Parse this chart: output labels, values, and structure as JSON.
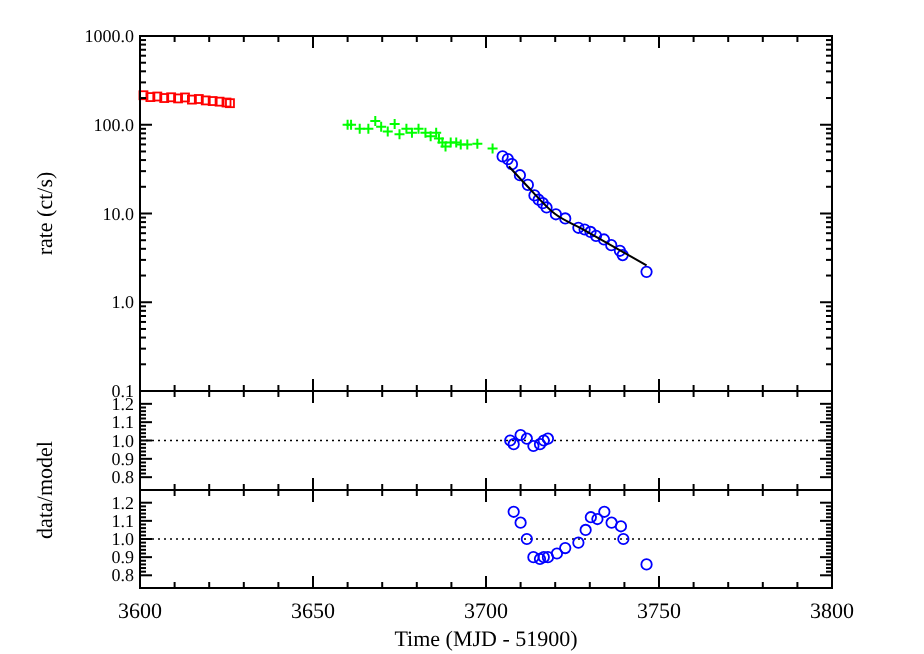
{
  "chart_data": [
    {
      "type": "scatter",
      "ylabel": "rate (ct/s)",
      "log": "y",
      "xlim": [
        3600,
        3800
      ],
      "xticks": [
        3600,
        3650,
        3700,
        3750,
        3800
      ],
      "ylim": [
        0.1,
        1000
      ],
      "yticks": [
        {
          "value": 0.1,
          "label": "0.1"
        },
        {
          "value": 1,
          "label": "1.0"
        },
        {
          "value": 10,
          "label": "10.0"
        },
        {
          "value": 100,
          "label": "100.0"
        },
        {
          "value": 1000,
          "label": "1000.0"
        }
      ],
      "tick_labels": "y",
      "series": [
        {
          "type": "scatter",
          "marker": "square",
          "color": "#ff0000",
          "x": [
            3601,
            3603,
            3605,
            3607,
            3609,
            3611,
            3613,
            3615,
            3617,
            3619,
            3621,
            3623,
            3625,
            3626
          ],
          "values": [
            215,
            205,
            208,
            200,
            204,
            198,
            203,
            192,
            195,
            188,
            185,
            182,
            178,
            175
          ]
        },
        {
          "type": "scatter",
          "marker": "cross",
          "color": "#00ff00",
          "x": [
            3660,
            3661,
            3663.5,
            3666,
            3668,
            3669.7,
            3671.6,
            3673.6,
            3675,
            3677,
            3678.6,
            3680.5,
            3682.5,
            3684,
            3685.6,
            3686.4,
            3687.4,
            3688.3,
            3689.8,
            3691.4,
            3692.7,
            3694.6,
            3697.5,
            3701.9
          ],
          "values": [
            100,
            100,
            90,
            90,
            110,
            95,
            84,
            102,
            78,
            90,
            81,
            90,
            81,
            74,
            81,
            70,
            63,
            57,
            63,
            63,
            60,
            60,
            61,
            54
          ]
        },
        {
          "type": "scatter",
          "marker": "circle",
          "color": "#0000ff",
          "x": [
            3704.8,
            3706.3,
            3707.5,
            3709.8,
            3712.1,
            3714,
            3715.2,
            3716.4,
            3717.5,
            3720.2,
            3722.9,
            3726.7,
            3728.5,
            3730.2,
            3731.8,
            3734.1,
            3736.2,
            3738.7,
            3739.5,
            3746.4
          ],
          "values": [
            44,
            41,
            36,
            27,
            21,
            16,
            14.3,
            13.1,
            11.7,
            9.8,
            8.8,
            6.9,
            6.6,
            6.2,
            5.6,
            5.1,
            4.4,
            3.8,
            3.4,
            2.2
          ]
        },
        {
          "type": "line",
          "color": "#000000",
          "x": [
            3706.6,
            3712.1,
            3719.8,
            3727.5,
            3739,
            3746.4
          ],
          "values": [
            34,
            20,
            10,
            6.8,
            3.8,
            2.6
          ]
        }
      ]
    },
    {
      "type": "scatter",
      "ylabel": "data/model",
      "xlim": [
        3600,
        3800
      ],
      "xticks": [
        3600,
        3650,
        3700,
        3750,
        3800
      ],
      "ylim": [
        0.73,
        1.27
      ],
      "yticks": [
        {
          "value": 0.8,
          "label": "0.8"
        },
        {
          "value": 0.9,
          "label": "0.9"
        },
        {
          "value": 1,
          "label": "1.0"
        },
        {
          "value": 1.1,
          "label": "1.1"
        },
        {
          "value": 1.2,
          "label": "1.2"
        }
      ],
      "tick_labels": "y",
      "ref_lines": [
        {
          "axis": "y",
          "value": 1,
          "line_style": "dotted"
        }
      ],
      "series": [
        {
          "type": "scatter",
          "marker": "circle",
          "color": "#0000ff",
          "x": [
            3707,
            3708,
            3710,
            3711.8,
            3713.7,
            3715.6,
            3716.7,
            3717.9
          ],
          "values": [
            1.0,
            0.98,
            1.03,
            1.01,
            0.97,
            0.98,
            1.0,
            1.01
          ]
        }
      ]
    },
    {
      "type": "scatter",
      "xlabel": "Time (MJD - 51900)",
      "xlim": [
        3600,
        3800
      ],
      "xticks": [
        3600,
        3650,
        3700,
        3750,
        3800
      ],
      "ylim": [
        0.73,
        1.27
      ],
      "yticks": [
        {
          "value": 0.8,
          "label": "0.8"
        },
        {
          "value": 0.9,
          "label": "0.9"
        },
        {
          "value": 1,
          "label": "1.0"
        },
        {
          "value": 1.1,
          "label": "1.1"
        },
        {
          "value": 1.2,
          "label": "1.2"
        }
      ],
      "ref_lines": [
        {
          "axis": "y",
          "value": 1,
          "line_style": "dotted"
        }
      ],
      "series": [
        {
          "type": "scatter",
          "marker": "circle",
          "color": "#0000ff",
          "x": [
            3708,
            3710,
            3711.8,
            3713.7,
            3715.6,
            3716.7,
            3717.9,
            3720.5,
            3722.9,
            3726.7,
            3728.8,
            3730.3,
            3732.2,
            3734.2,
            3736.3,
            3739,
            3739.7,
            3746.4
          ],
          "values": [
            1.15,
            1.09,
            1.0,
            0.9,
            0.89,
            0.9,
            0.9,
            0.92,
            0.95,
            0.98,
            1.05,
            1.12,
            1.11,
            1.15,
            1.09,
            1.07,
            1.0,
            0.86
          ]
        }
      ]
    }
  ]
}
